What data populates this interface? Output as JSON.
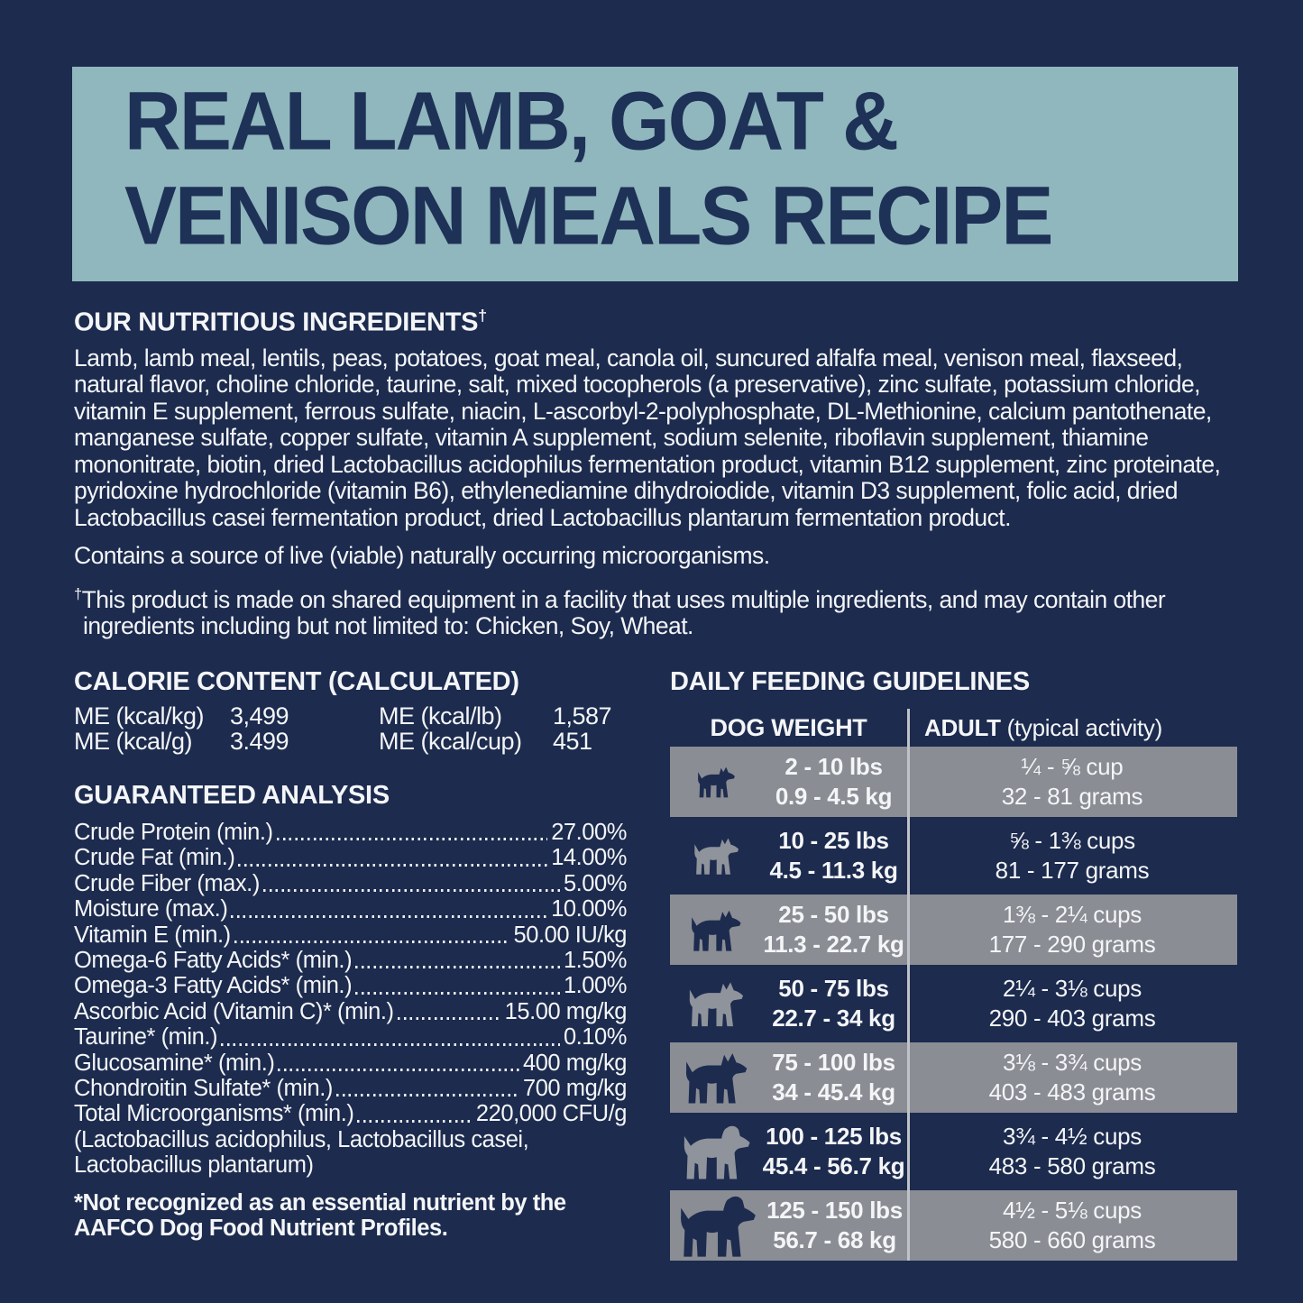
{
  "colors": {
    "background_navy": "#1c2b4e",
    "header_teal": "#90b7bd",
    "title_navy": "#1e3157",
    "row_gray": "#8a8d94",
    "text_white": "#f4f5f7",
    "table_divider": "#bfc2c6"
  },
  "hero": {
    "title_line1": "REAL LAMB, GOAT &",
    "title_line2": "VENISON MEALS RECIPE"
  },
  "ingredients": {
    "heading": "OUR NUTRITIOUS INGREDIENTS",
    "heading_dagger": "†",
    "list": "Lamb, lamb meal, lentils, peas, potatoes, goat meal, canola oil, suncured alfalfa meal, venison meal, flaxseed, natural flavor, choline chloride, taurine, salt, mixed tocopherols (a preservative), zinc sulfate, potassium chloride, vitamin E supplement, ferrous sulfate, niacin, L-ascorbyl-2-polyphosphate, DL-Methionine, calcium pantothenate, manganese sulfate, copper sulfate, vitamin A supplement, sodium selenite, riboflavin supplement, thiamine mononitrate, biotin, dried Lactobacillus acidophilus fermentation product, vitamin B12 supplement, zinc proteinate, pyridoxine hydrochloride (vitamin B6), ethylenediamine dihydroiodide, vitamin D3 supplement, folic acid, dried Lactobacillus casei fermentation product, dried Lactobacillus plantarum fermentation product.",
    "contains_note": "Contains a source of live (viable) naturally occurring microorganisms.",
    "equip_dagger": "†",
    "equip_note": "This product is made on shared equipment in a facility that uses multiple ingredients, and may contain other ingredients including but not limited to: Chicken, Soy, Wheat."
  },
  "calories": {
    "heading": "CALORIE CONTENT (CALCULATED)",
    "entries": [
      {
        "label": "ME (kcal/kg)",
        "value": "3,499"
      },
      {
        "label": "ME (kcal/g)",
        "value": "3.499"
      },
      {
        "label": "ME (kcal/lb)",
        "value": "1,587"
      },
      {
        "label": "ME (kcal/cup)",
        "value": "451"
      }
    ]
  },
  "analysis": {
    "heading": "GUARANTEED ANALYSIS",
    "rows": [
      {
        "label": "Crude Protein (min.)",
        "value": "27.00%"
      },
      {
        "label": "Crude Fat (min.)",
        "value": "14.00%"
      },
      {
        "label": "Crude Fiber (max.)",
        "value": "5.00%"
      },
      {
        "label": "Moisture (max.)",
        "value": "10.00%"
      },
      {
        "label": "Vitamin E (min.)",
        "value": "50.00 IU/kg"
      },
      {
        "label": "Omega-6 Fatty Acids* (min.)",
        "value": "1.50%"
      },
      {
        "label": "Omega-3 Fatty Acids* (min.)",
        "value": "1.00%"
      },
      {
        "label": "Ascorbic Acid (Vitamin C)* (min.)",
        "value": "15.00 mg/kg"
      },
      {
        "label": "Taurine* (min.)",
        "value": "0.10%"
      },
      {
        "label": "Glucosamine* (min.)",
        "value": "400 mg/kg"
      },
      {
        "label": "Chondroitin Sulfate* (min.)",
        "value": "700 mg/kg"
      },
      {
        "label": "Total Microorganisms* (min.)",
        "value": "220,000 CFU/g"
      }
    ],
    "extra_lines": [
      "(Lactobacillus acidophilus, Lactobacillus casei,",
      "Lactobacillus plantarum)"
    ],
    "footnote_lines": [
      "*Not recognized as an essential nutrient by the",
      "AAFCO Dog Food Nutrient Profiles."
    ]
  },
  "feeding": {
    "heading": "DAILY FEEDING GUIDELINES",
    "col1_header": "DOG WEIGHT",
    "col2_header_bold": "ADULT",
    "col2_header_normal": " (typical activity)",
    "rows": [
      {
        "icon": "chihuahua-icon",
        "ear": "up",
        "size": 40,
        "lbs": "2 - 10 lbs",
        "kg": "0.9 - 4.5 kg",
        "cups": "¼ - ⅝ cup",
        "grams": "32 - 81 grams"
      },
      {
        "icon": "french-bulldog-icon",
        "ear": "up",
        "size": 48,
        "lbs": "10 - 25 lbs",
        "kg": "4.5 - 11.3 kg",
        "cups": "⅝ - 1⅜ cups",
        "grams": "81 - 177 grams"
      },
      {
        "icon": "husky-icon",
        "ear": "up",
        "size": 53,
        "lbs": "25 - 50 lbs",
        "kg": "11.3 - 22.7 kg",
        "cups": "1⅜ - 2¼ cups",
        "grams": "177 - 290 grams"
      },
      {
        "icon": "pit-bull-icon",
        "ear": "up",
        "size": 58,
        "lbs": "50 - 75 lbs",
        "kg": "22.7 - 34 kg",
        "cups": "2¼ - 3⅛ cups",
        "grams": "290 - 403 grams"
      },
      {
        "icon": "great-dane-icon",
        "ear": "up",
        "size": 66,
        "lbs": "75 - 100 lbs",
        "kg": "34 - 45.4 kg",
        "cups": "3⅛ - 3¾ cups",
        "grams": "403 - 483 grams"
      },
      {
        "icon": "labrador-icon",
        "ear": "floppy",
        "size": 70,
        "lbs": "100 - 125 lbs",
        "kg": "45.4 - 56.7 kg",
        "cups": "3¾ - 4½ cups",
        "grams": "483 - 580 grams"
      },
      {
        "icon": "newfoundland-icon",
        "ear": "floppy",
        "size": 80,
        "lbs": "125 - 150 lbs",
        "kg": "56.7 - 68 kg",
        "cups": "4½ - 5⅛ cups",
        "grams": "580 - 660 grams"
      }
    ]
  }
}
